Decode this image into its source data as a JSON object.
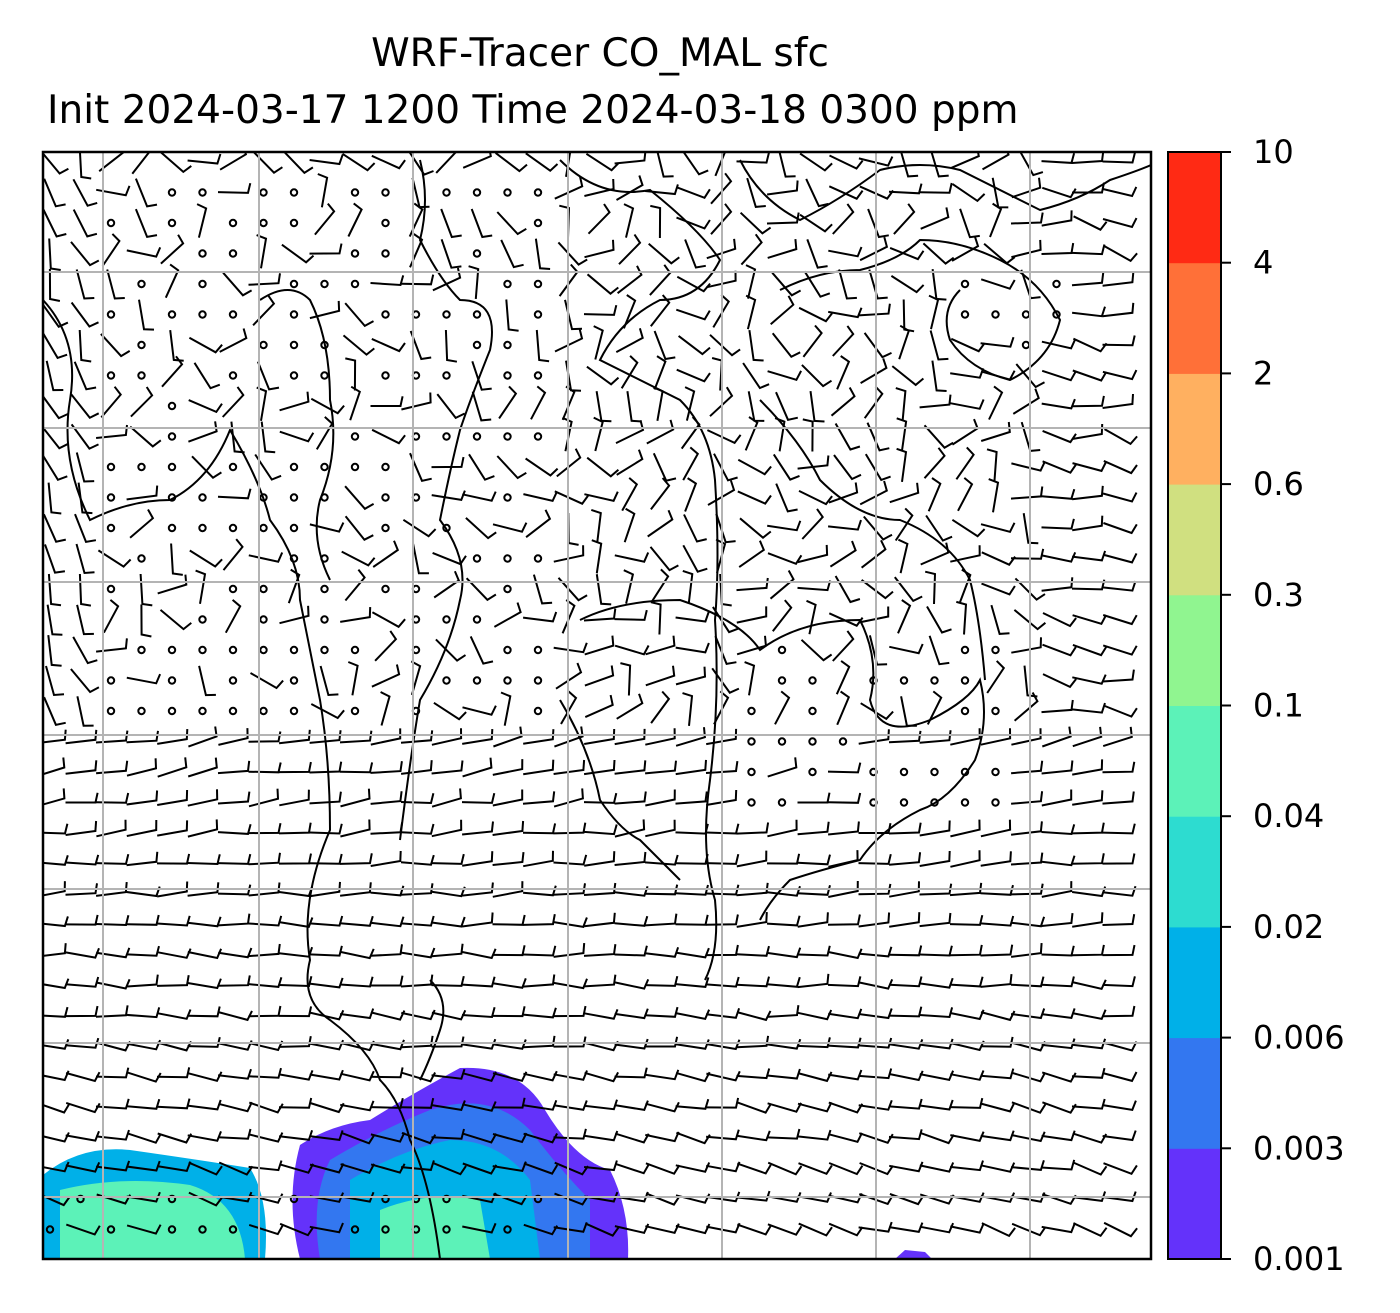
{
  "title": {
    "line1": "WRF-Tracer CO_MAL sfc",
    "line2": "Init 2024-03-17 1200 Time 2024-03-18 0300 ppm"
  },
  "colorbar": {
    "levels": [
      "0.001",
      "0.003",
      "0.006",
      "0.02",
      "0.04",
      "0.1",
      "0.3",
      "0.6",
      "2",
      "4",
      "10"
    ],
    "colors": [
      "#6432fa",
      "#3377f0",
      "#00b0e8",
      "#2ddcd0",
      "#5cf2b8",
      "#90f590",
      "#d0e080",
      "#ffb060",
      "#ff7038",
      "#ff2a14"
    ]
  },
  "map": {
    "grid_lines": 7,
    "overlay": "wind barbs",
    "coastline_color": "#000000"
  }
}
